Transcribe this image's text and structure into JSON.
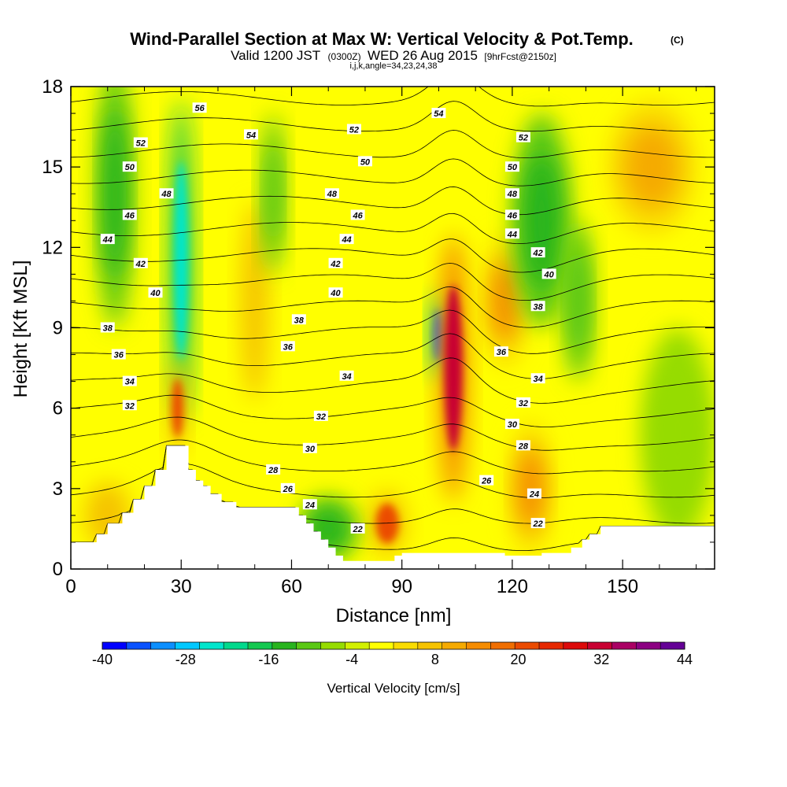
{
  "title": {
    "main": "Wind-Parallel Section at Max W: Vertical Velocity & Pot.Temp.",
    "main_suffix": "(C)",
    "line2_a": "Valid 1200 JST",
    "line2_b": "(0300Z)",
    "line2_c": "WED 26 Aug 2015",
    "line2_d": "[9hrFcst@2150z]",
    "line3": "i,j,k,angle=34,23,24,38"
  },
  "chart_data": {
    "type": "heatmap",
    "xlabel": "Distance [nm]",
    "ylabel": "Height [Kft MSL]",
    "xlim": [
      0,
      175
    ],
    "ylim": [
      0,
      18
    ],
    "x_ticks": [
      0,
      30,
      60,
      90,
      120,
      150
    ],
    "y_ticks": [
      0,
      3,
      6,
      9,
      12,
      15,
      18
    ],
    "colorbar": {
      "label": "Vertical Velocity [cm/s]",
      "min": -40,
      "max": 44,
      "step": 4,
      "tick_values": [
        -40,
        -28,
        -16,
        -4,
        8,
        20,
        32,
        44
      ],
      "tick_labels": [
        "-40",
        "-28",
        "-16",
        "-4",
        "8",
        "20",
        "32",
        "44"
      ],
      "colors": [
        "#0000ff",
        "#0a52ff",
        "#0c8fff",
        "#00c8ff",
        "#00e6cc",
        "#00d98c",
        "#14c850",
        "#28b41e",
        "#5ac814",
        "#96dc00",
        "#d2f000",
        "#ffff00",
        "#fadc00",
        "#f5c300",
        "#f5aa00",
        "#f58c00",
        "#f06e00",
        "#eb4b00",
        "#e62800",
        "#dc0a0a",
        "#c80032",
        "#aa0064",
        "#8c0082",
        "#640096"
      ],
      "background_value": 4
    },
    "w_features": [
      {
        "x": 100,
        "z": 8.7,
        "rx": 2.2,
        "rz": 1.6,
        "value": -36
      },
      {
        "x": 104,
        "z": 7.5,
        "rx": 4,
        "rz": 5,
        "value": 40
      },
      {
        "x": 30,
        "z": 11.5,
        "rx": 3,
        "rz": 6,
        "value": -24
      },
      {
        "x": 29,
        "z": 6,
        "rx": 2.5,
        "rz": 1.8,
        "value": 28
      },
      {
        "x": 86,
        "z": 1.7,
        "rx": 5,
        "rz": 1.2,
        "value": 28
      },
      {
        "x": 125,
        "z": 3,
        "rx": 6,
        "rz": 2.5,
        "value": 20
      },
      {
        "x": 118,
        "z": 10,
        "rx": 6,
        "rz": 2.5,
        "value": 20
      },
      {
        "x": 158,
        "z": 15,
        "rx": 12,
        "rz": 2.5,
        "value": 16
      },
      {
        "x": 10,
        "z": 2,
        "rx": 10,
        "rz": 2,
        "value": 12
      },
      {
        "x": 50,
        "z": 10,
        "rx": 6,
        "rz": 6,
        "value": 12
      },
      {
        "x": 128,
        "z": 13,
        "rx": 8,
        "rz": 4,
        "value": -12
      },
      {
        "x": 12,
        "z": 14,
        "rx": 5,
        "rz": 5,
        "value": -10
      },
      {
        "x": 55,
        "z": 14,
        "rx": 3,
        "rz": 3,
        "value": -8
      },
      {
        "x": 70,
        "z": 1.5,
        "rx": 8,
        "rz": 1.2,
        "value": -12
      },
      {
        "x": 138,
        "z": 10,
        "rx": 4,
        "rz": 3,
        "value": -8
      },
      {
        "x": 165,
        "z": 5,
        "rx": 10,
        "rz": 4,
        "value": -4
      }
    ],
    "terrain": [
      [
        0,
        1
      ],
      [
        7,
        1
      ],
      [
        7,
        1.3
      ],
      [
        10,
        1.3
      ],
      [
        10,
        1.7
      ],
      [
        14,
        1.7
      ],
      [
        14,
        2.1
      ],
      [
        17,
        2.1
      ],
      [
        17,
        2.6
      ],
      [
        20,
        2.6
      ],
      [
        20,
        3.1
      ],
      [
        23,
        3.1
      ],
      [
        23,
        3.7
      ],
      [
        26,
        3.7
      ],
      [
        26,
        4.6
      ],
      [
        32,
        4.6
      ],
      [
        32,
        3.7
      ],
      [
        34,
        3.7
      ],
      [
        34,
        3.3
      ],
      [
        36,
        3.3
      ],
      [
        36,
        3.1
      ],
      [
        38,
        3.1
      ],
      [
        38,
        2.8
      ],
      [
        41,
        2.8
      ],
      [
        41,
        2.5
      ],
      [
        45,
        2.5
      ],
      [
        45,
        2.3
      ],
      [
        62,
        2.3
      ],
      [
        62,
        2.0
      ],
      [
        64,
        2.0
      ],
      [
        64,
        1.7
      ],
      [
        66,
        1.7
      ],
      [
        66,
        1.4
      ],
      [
        68,
        1.4
      ],
      [
        68,
        1.1
      ],
      [
        70,
        1.1
      ],
      [
        70,
        0.8
      ],
      [
        72,
        0.8
      ],
      [
        72,
        0.5
      ],
      [
        74,
        0.5
      ],
      [
        74,
        0.3
      ],
      [
        88,
        0.3
      ],
      [
        88,
        0.5
      ],
      [
        90,
        0.5
      ],
      [
        90,
        0.6
      ],
      [
        118,
        0.6
      ],
      [
        118,
        0.5
      ],
      [
        128,
        0.5
      ],
      [
        128,
        0.6
      ],
      [
        136,
        0.6
      ],
      [
        136,
        0.8
      ],
      [
        139,
        0.8
      ],
      [
        139,
        1.1
      ],
      [
        141,
        1.1
      ],
      [
        141,
        1.3
      ],
      [
        144,
        1.3
      ],
      [
        144,
        1.6
      ],
      [
        175,
        1.6
      ]
    ],
    "theta_contours": [
      22,
      24,
      26,
      28,
      30,
      32,
      34,
      36,
      38,
      40,
      42,
      44,
      46,
      48,
      50,
      52,
      54,
      56
    ],
    "theta_labels": [
      {
        "x": 35,
        "z": 17.2,
        "text": "56"
      },
      {
        "x": 49,
        "z": 16.2,
        "text": "54"
      },
      {
        "x": 100,
        "z": 17.0,
        "text": "54"
      },
      {
        "x": 19,
        "z": 15.9,
        "text": "52"
      },
      {
        "x": 77,
        "z": 16.4,
        "text": "52"
      },
      {
        "x": 123,
        "z": 16.1,
        "text": "52"
      },
      {
        "x": 16,
        "z": 15.0,
        "text": "50"
      },
      {
        "x": 80,
        "z": 15.2,
        "text": "50"
      },
      {
        "x": 120,
        "z": 15.0,
        "text": "50"
      },
      {
        "x": 26,
        "z": 14.0,
        "text": "48"
      },
      {
        "x": 71,
        "z": 14.0,
        "text": "48"
      },
      {
        "x": 120,
        "z": 14.0,
        "text": "48"
      },
      {
        "x": 16,
        "z": 13.2,
        "text": "46"
      },
      {
        "x": 78,
        "z": 13.2,
        "text": "46"
      },
      {
        "x": 120,
        "z": 13.2,
        "text": "46"
      },
      {
        "x": 10,
        "z": 12.3,
        "text": "44"
      },
      {
        "x": 75,
        "z": 12.3,
        "text": "44"
      },
      {
        "x": 120,
        "z": 12.5,
        "text": "44"
      },
      {
        "x": 19,
        "z": 11.4,
        "text": "42"
      },
      {
        "x": 72,
        "z": 11.4,
        "text": "42"
      },
      {
        "x": 127,
        "z": 11.8,
        "text": "42"
      },
      {
        "x": 23,
        "z": 10.3,
        "text": "40"
      },
      {
        "x": 72,
        "z": 10.3,
        "text": "40"
      },
      {
        "x": 130,
        "z": 11.0,
        "text": "40"
      },
      {
        "x": 10,
        "z": 9.0,
        "text": "38"
      },
      {
        "x": 62,
        "z": 9.3,
        "text": "38"
      },
      {
        "x": 127,
        "z": 9.8,
        "text": "38"
      },
      {
        "x": 13,
        "z": 8.0,
        "text": "36"
      },
      {
        "x": 59,
        "z": 8.3,
        "text": "36"
      },
      {
        "x": 117,
        "z": 8.1,
        "text": "36"
      },
      {
        "x": 16,
        "z": 7.0,
        "text": "34"
      },
      {
        "x": 75,
        "z": 7.2,
        "text": "34"
      },
      {
        "x": 127,
        "z": 7.1,
        "text": "34"
      },
      {
        "x": 16,
        "z": 6.1,
        "text": "32"
      },
      {
        "x": 68,
        "z": 5.7,
        "text": "32"
      },
      {
        "x": 123,
        "z": 6.2,
        "text": "32"
      },
      {
        "x": 120,
        "z": 5.4,
        "text": "30"
      },
      {
        "x": 65,
        "z": 4.5,
        "text": "30"
      },
      {
        "x": 123,
        "z": 4.6,
        "text": "28"
      },
      {
        "x": 55,
        "z": 3.7,
        "text": "28"
      },
      {
        "x": 59,
        "z": 3.0,
        "text": "26"
      },
      {
        "x": 113,
        "z": 3.3,
        "text": "26"
      },
      {
        "x": 65,
        "z": 2.4,
        "text": "24"
      },
      {
        "x": 126,
        "z": 2.8,
        "text": "24"
      },
      {
        "x": 78,
        "z": 1.5,
        "text": "22"
      },
      {
        "x": 127,
        "z": 1.7,
        "text": "22"
      }
    ]
  }
}
